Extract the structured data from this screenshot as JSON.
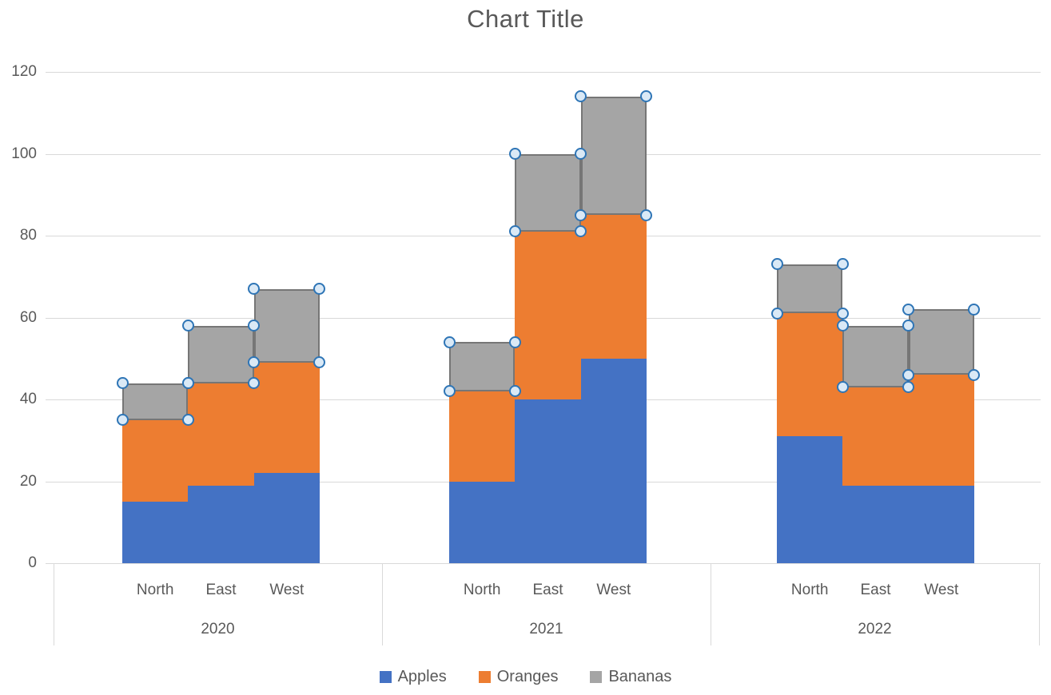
{
  "title": "Chart Title",
  "colors": {
    "text": "#595959",
    "grid": "#D9D9D9",
    "selection_border": "#767676",
    "handle_fill": "#DAE9F6",
    "handle_stroke": "#2E75B6",
    "background": "#FFFFFF"
  },
  "chart_data": {
    "type": "bar",
    "stacked": true,
    "title": "Chart Title",
    "groups": [
      "2020",
      "2021",
      "2022"
    ],
    "categories": [
      "North",
      "East",
      "West"
    ],
    "series": [
      {
        "name": "Apples",
        "color": "#4472C4",
        "values": [
          [
            15,
            19,
            22
          ],
          [
            20,
            40,
            50
          ],
          [
            31,
            19,
            19
          ]
        ]
      },
      {
        "name": "Oranges",
        "color": "#ED7D31",
        "values": [
          [
            20,
            25,
            27
          ],
          [
            22,
            41,
            35
          ],
          [
            30,
            24,
            27
          ]
        ]
      },
      {
        "name": "Bananas",
        "color": "#A5A5A5",
        "values": [
          [
            9,
            14,
            18
          ],
          [
            12,
            19,
            29
          ],
          [
            12,
            15,
            16
          ]
        ]
      }
    ],
    "stack_totals": [
      [
        44,
        58,
        67
      ],
      [
        54,
        100,
        114
      ],
      [
        73,
        58,
        62
      ]
    ],
    "y_ticks": [
      0,
      20,
      40,
      60,
      80,
      100,
      120
    ],
    "ylim": [
      0,
      120
    ],
    "xlabel": "",
    "ylabel": "",
    "grid": true,
    "legend_position": "bottom",
    "legend": [
      "Apples",
      "Oranges",
      "Bananas"
    ],
    "selected_series": "Bananas"
  }
}
